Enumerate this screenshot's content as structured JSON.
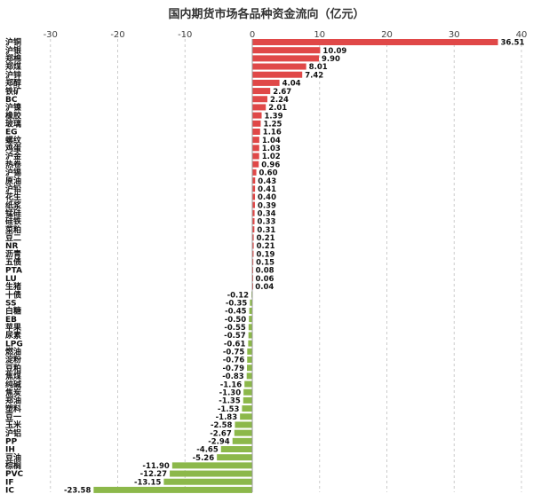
{
  "chart_data": {
    "type": "bar",
    "orientation": "horizontal",
    "title": "国内期货市场各品种资金流向（亿元）",
    "xlabel": "",
    "ylabel": "",
    "xlim": [
      -30,
      40
    ],
    "xticks": [
      -30,
      -20,
      -10,
      0,
      10,
      20,
      30,
      40
    ],
    "grid": true,
    "positive_color": "#e04848",
    "negative_color": "#8cb84a",
    "categories": [
      "沪铜",
      "沪银",
      "郑棉",
      "郑煤",
      "沪锌",
      "郑醇",
      "铁矿",
      "BC",
      "沪镍",
      "橡胶",
      "玻璃",
      "EG",
      "螺纹",
      "鸡蛋",
      "沪金",
      "热卷",
      "沪锡",
      "原油",
      "沪铅",
      "花生",
      "纸浆",
      "锰硅",
      "硅铁",
      "菜粕",
      "豆二",
      "NR",
      "沥青",
      "五债",
      "PTA",
      "LU",
      "生猪",
      "十债",
      "SS",
      "白糖",
      "EB",
      "苹果",
      "尿素",
      "LPG",
      "燃油",
      "淀粉",
      "豆粕",
      "焦煤",
      "纯碱",
      "焦炭",
      "郑油",
      "塑料",
      "豆一",
      "玉米",
      "沪铝",
      "PP",
      "IH",
      "豆油",
      "棕榈",
      "PVC",
      "IF",
      "IC"
    ],
    "values": [
      36.51,
      10.09,
      9.9,
      8.01,
      7.42,
      4.04,
      2.67,
      2.24,
      2.01,
      1.39,
      1.25,
      1.16,
      1.04,
      1.03,
      1.02,
      0.96,
      0.6,
      0.43,
      0.41,
      0.4,
      0.39,
      0.34,
      0.33,
      0.31,
      0.21,
      0.21,
      0.19,
      0.15,
      0.08,
      0.06,
      0.04,
      -0.12,
      -0.35,
      -0.45,
      -0.5,
      -0.55,
      -0.57,
      -0.61,
      -0.75,
      -0.76,
      -0.79,
      -0.83,
      -1.16,
      -1.3,
      -1.35,
      -1.53,
      -1.83,
      -2.58,
      -2.67,
      -2.94,
      -4.65,
      -5.26,
      -11.9,
      -12.27,
      -13.15,
      -23.58
    ],
    "value_labels": [
      "36.51",
      "10.09",
      "9.90",
      "8.01",
      "7.42",
      "4.04",
      "2.67",
      "2.24",
      "2.01",
      "1.39",
      "1.25",
      "1.16",
      "1.04",
      "1.03",
      "1.02",
      "0.96",
      "0.60",
      "0.43",
      "0.41",
      "0.40",
      "0.39",
      "0.34",
      "0.33",
      "0.31",
      "0.21",
      "0.21",
      "0.19",
      "0.15",
      "0.08",
      "0.06",
      "0.04",
      "-0.12",
      "-0.35",
      "-0.45",
      "-0.50",
      "-0.55",
      "-0.57",
      "-0.61",
      "-0.75",
      "-0.76",
      "-0.79",
      "-0.83",
      "-1.16",
      "-1.30",
      "-1.35",
      "-1.53",
      "-1.83",
      "-2.58",
      "-2.67",
      "-2.94",
      "-4.65",
      "-5.26",
      "-11.90",
      "-12.27",
      "-13.15",
      "-23.58"
    ]
  }
}
